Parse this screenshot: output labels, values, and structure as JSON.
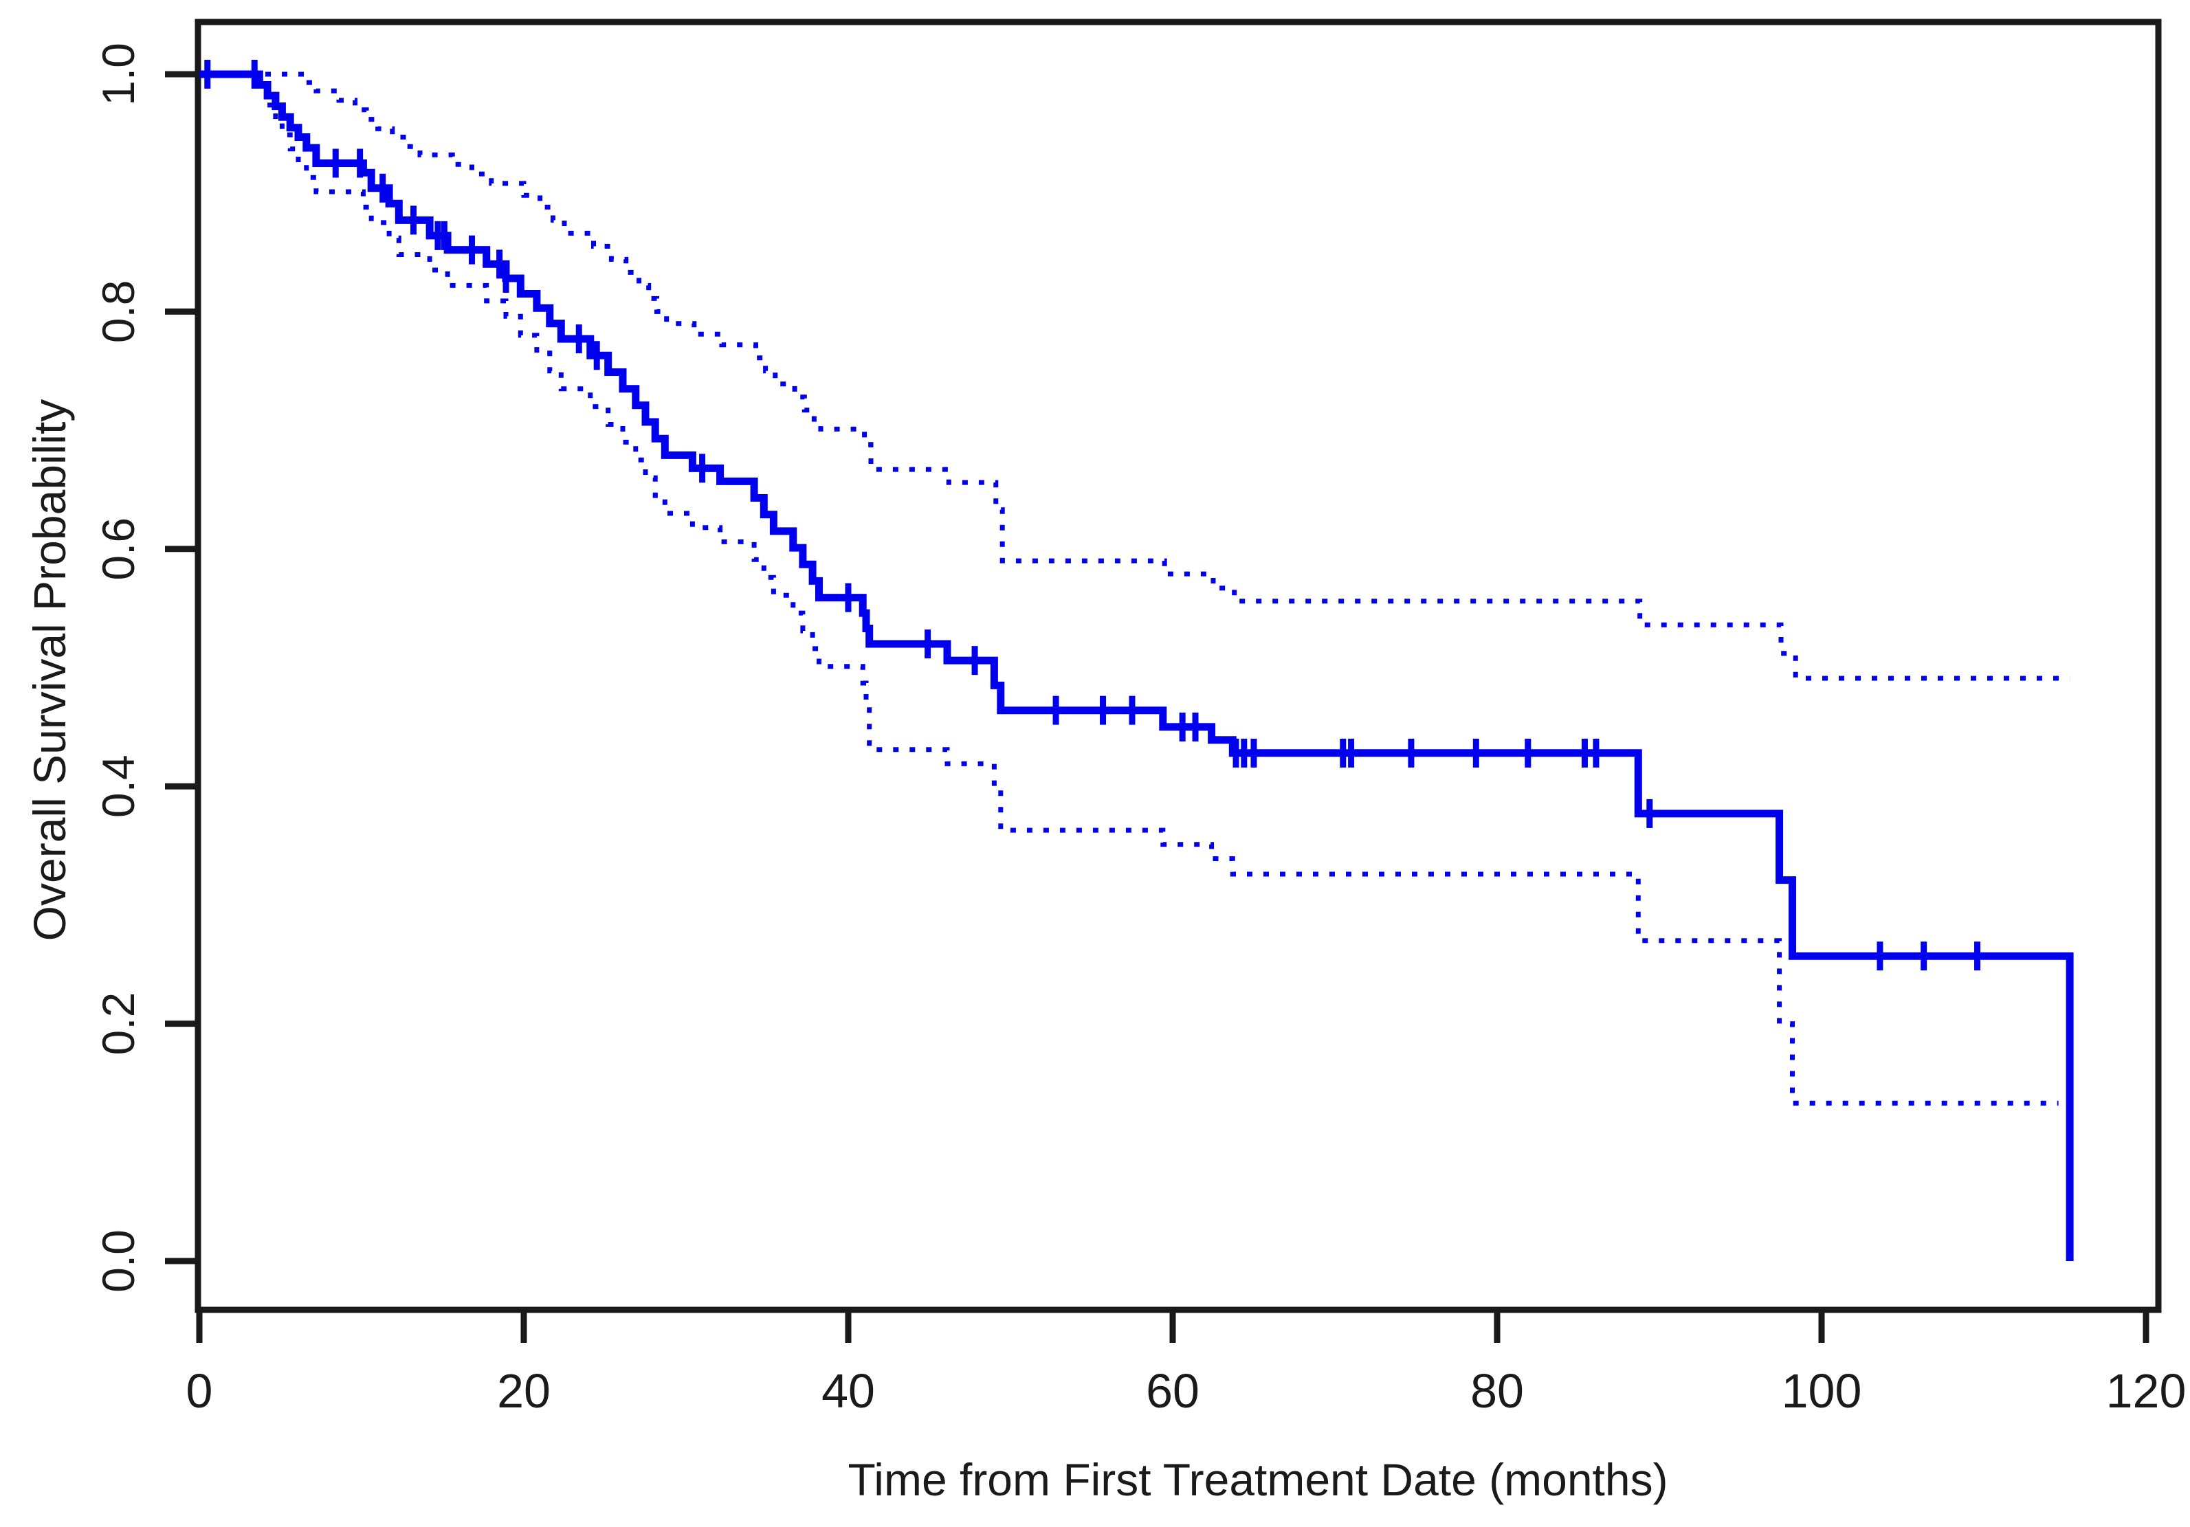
{
  "page": {
    "background_color": "#ffffff",
    "text_color": "#1a1a1a"
  },
  "chart_data": {
    "type": "line",
    "subtype": "kaplan-meier-step-curve",
    "title": "",
    "xlabel": "Time from First Treatment Date (months)",
    "ylabel": "Overall Survival Probability",
    "xlim": [
      0,
      120
    ],
    "ylim": [
      0.0,
      1.0
    ],
    "x_ticks": [
      "0",
      "20",
      "40",
      "60",
      "80",
      "100",
      "120"
    ],
    "y_ticks": [
      "0.0",
      "0.2",
      "0.4",
      "0.6",
      "0.8",
      "1.0"
    ],
    "grid": false,
    "legend_position": "none",
    "line_color": "#0000EE",
    "axis_color": "#1a1a1a",
    "series": [
      {
        "name": "overall-survival",
        "style": "solid",
        "steps": [
          [
            0,
            1.0
          ],
          [
            3.7,
            0.991
          ],
          [
            4.2,
            0.982
          ],
          [
            4.7,
            0.973
          ],
          [
            5.1,
            0.964
          ],
          [
            5.6,
            0.955
          ],
          [
            6.1,
            0.947
          ],
          [
            6.6,
            0.938
          ],
          [
            7.2,
            0.925
          ],
          [
            10.1,
            0.917
          ],
          [
            10.6,
            0.904
          ],
          [
            11.7,
            0.891
          ],
          [
            12.3,
            0.877
          ],
          [
            14.2,
            0.864
          ],
          [
            15.3,
            0.852
          ],
          [
            17.7,
            0.84
          ],
          [
            18.9,
            0.828
          ],
          [
            19.8,
            0.815
          ],
          [
            20.8,
            0.803
          ],
          [
            21.6,
            0.79
          ],
          [
            22.3,
            0.777
          ],
          [
            24.1,
            0.763
          ],
          [
            25.2,
            0.749
          ],
          [
            26.1,
            0.735
          ],
          [
            26.9,
            0.721
          ],
          [
            27.5,
            0.707
          ],
          [
            28.1,
            0.693
          ],
          [
            28.7,
            0.679
          ],
          [
            30.4,
            0.668
          ],
          [
            32.1,
            0.657
          ],
          [
            34.2,
            0.643
          ],
          [
            34.8,
            0.629
          ],
          [
            35.4,
            0.615
          ],
          [
            36.6,
            0.601
          ],
          [
            37.2,
            0.587
          ],
          [
            37.8,
            0.573
          ],
          [
            38.2,
            0.559
          ],
          [
            40.9,
            0.546
          ],
          [
            41.1,
            0.533
          ],
          [
            41.3,
            0.52
          ],
          [
            46.1,
            0.506
          ],
          [
            49.0,
            0.485
          ],
          [
            49.4,
            0.464
          ],
          [
            59.4,
            0.45
          ],
          [
            62.4,
            0.439
          ],
          [
            63.7,
            0.428
          ],
          [
            88.7,
            0.377
          ],
          [
            97.4,
            0.321
          ],
          [
            98.2,
            0.257
          ],
          [
            115.3,
            0.0
          ]
        ],
        "censor_times": [
          0.5,
          3.4,
          8.4,
          9.9,
          11.3,
          13.2,
          14.7,
          15.1,
          16.8,
          18.5,
          18.9,
          23.4,
          24.5,
          31.0,
          40.0,
          44.9,
          47.8,
          52.8,
          55.7,
          57.5,
          60.6,
          61.4,
          63.9,
          64.4,
          65.0,
          70.5,
          71.0,
          74.7,
          78.7,
          81.9,
          85.4,
          86.1,
          89.4,
          103.6,
          106.3,
          109.6
        ]
      },
      {
        "name": "upper-95-ci",
        "style": "dotted",
        "steps": [
          [
            0,
            1.0
          ],
          [
            6.6,
            0.993
          ],
          [
            7.2,
            0.986
          ],
          [
            8.6,
            0.978
          ],
          [
            9.6,
            0.97
          ],
          [
            10.3,
            0.962
          ],
          [
            11.0,
            0.954
          ],
          [
            11.9,
            0.947
          ],
          [
            12.8,
            0.939
          ],
          [
            13.6,
            0.932
          ],
          [
            15.6,
            0.924
          ],
          [
            16.8,
            0.916
          ],
          [
            18.0,
            0.908
          ],
          [
            20.0,
            0.898
          ],
          [
            21.0,
            0.888
          ],
          [
            21.8,
            0.877
          ],
          [
            22.5,
            0.866
          ],
          [
            24.3,
            0.855
          ],
          [
            25.4,
            0.844
          ],
          [
            26.3,
            0.833
          ],
          [
            27.1,
            0.822
          ],
          [
            27.7,
            0.811
          ],
          [
            28.2,
            0.8
          ],
          [
            28.8,
            0.79
          ],
          [
            30.5,
            0.781
          ],
          [
            32.2,
            0.772
          ],
          [
            34.3,
            0.761
          ],
          [
            34.9,
            0.75
          ],
          [
            35.5,
            0.739
          ],
          [
            36.7,
            0.728
          ],
          [
            37.3,
            0.717
          ],
          [
            37.9,
            0.706
          ],
          [
            38.3,
            0.701
          ],
          [
            41.0,
            0.688
          ],
          [
            41.4,
            0.667
          ],
          [
            46.2,
            0.656
          ],
          [
            49.1,
            0.633
          ],
          [
            49.5,
            0.59
          ],
          [
            59.5,
            0.579
          ],
          [
            62.5,
            0.567
          ],
          [
            63.8,
            0.556
          ],
          [
            88.8,
            0.536
          ],
          [
            97.5,
            0.512
          ],
          [
            98.4,
            0.491
          ],
          [
            115.3,
            0.491
          ]
        ],
        "censor_times": []
      },
      {
        "name": "lower-95-ci",
        "style": "dotted",
        "steps": [
          [
            0,
            1.0
          ],
          [
            3.7,
            0.987
          ],
          [
            4.2,
            0.974
          ],
          [
            4.7,
            0.961
          ],
          [
            5.1,
            0.949
          ],
          [
            5.6,
            0.937
          ],
          [
            6.1,
            0.925
          ],
          [
            6.6,
            0.913
          ],
          [
            7.2,
            0.901
          ],
          [
            10.1,
            0.888
          ],
          [
            10.6,
            0.875
          ],
          [
            11.7,
            0.862
          ],
          [
            12.3,
            0.848
          ],
          [
            14.2,
            0.835
          ],
          [
            15.3,
            0.822
          ],
          [
            17.7,
            0.809
          ],
          [
            18.9,
            0.796
          ],
          [
            19.8,
            0.78
          ],
          [
            20.8,
            0.765
          ],
          [
            21.6,
            0.75
          ],
          [
            22.3,
            0.735
          ],
          [
            24.1,
            0.72
          ],
          [
            25.2,
            0.705
          ],
          [
            26.1,
            0.69
          ],
          [
            26.9,
            0.675
          ],
          [
            27.5,
            0.66
          ],
          [
            28.1,
            0.645
          ],
          [
            28.7,
            0.63
          ],
          [
            30.4,
            0.618
          ],
          [
            32.1,
            0.606
          ],
          [
            34.2,
            0.591
          ],
          [
            34.8,
            0.576
          ],
          [
            35.4,
            0.561
          ],
          [
            36.6,
            0.546
          ],
          [
            37.2,
            0.531
          ],
          [
            37.8,
            0.516
          ],
          [
            38.2,
            0.501
          ],
          [
            40.9,
            0.487
          ],
          [
            41.1,
            0.473
          ],
          [
            41.3,
            0.431
          ],
          [
            46.1,
            0.419
          ],
          [
            49.0,
            0.4
          ],
          [
            49.4,
            0.363
          ],
          [
            59.4,
            0.351
          ],
          [
            62.4,
            0.339
          ],
          [
            63.7,
            0.326
          ],
          [
            88.7,
            0.27
          ],
          [
            97.4,
            0.2
          ],
          [
            98.2,
            0.133
          ],
          [
            114.6,
            0.133
          ]
        ],
        "censor_times": []
      }
    ]
  }
}
